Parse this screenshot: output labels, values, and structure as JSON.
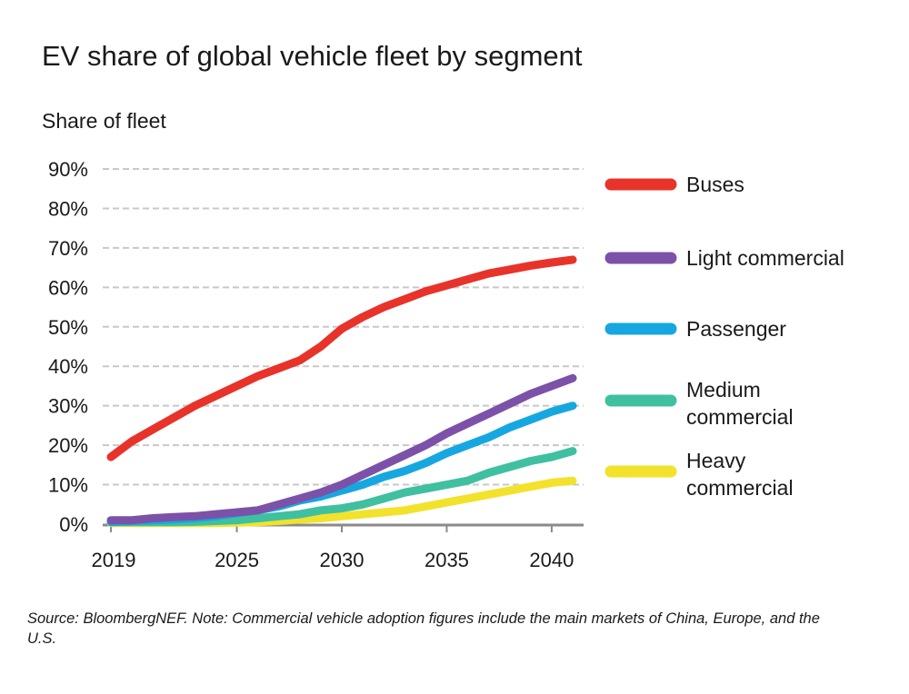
{
  "chart_data": {
    "type": "line",
    "title": "EV share of global vehicle fleet by segment",
    "ylabel": "Share of fleet",
    "xlabel": "",
    "y_ticks": [
      "0%",
      "10%",
      "20%",
      "30%",
      "40%",
      "50%",
      "60%",
      "70%",
      "80%",
      "90%"
    ],
    "ylim": [
      0,
      90
    ],
    "x_ticks": [
      "2019",
      "2025",
      "2030",
      "2035",
      "2040"
    ],
    "xlim": [
      2019,
      2041
    ],
    "grid": "horizontal dashed",
    "legend_position": "right",
    "x": [
      2019,
      2020,
      2021,
      2022,
      2023,
      2024,
      2025,
      2026,
      2027,
      2028,
      2029,
      2030,
      2031,
      2032,
      2033,
      2034,
      2035,
      2036,
      2037,
      2038,
      2039,
      2040,
      2041
    ],
    "series": [
      {
        "name": "Buses",
        "color": "#e8332a",
        "values": [
          17,
          21,
          24,
          27,
          30,
          32.5,
          35,
          37.5,
          39.5,
          41.5,
          45,
          49.5,
          52.5,
          55,
          57,
          59,
          60.5,
          62,
          63.5,
          64.5,
          65.5,
          66.3,
          67
        ]
      },
      {
        "name": "Light commercial",
        "color": "#7c52a8",
        "values": [
          1,
          1,
          1.5,
          1.8,
          2,
          2.5,
          3,
          3.5,
          5,
          6.5,
          8,
          10,
          12.5,
          15,
          17.5,
          20,
          23,
          25.5,
          28,
          30.5,
          33,
          35,
          37
        ]
      },
      {
        "name": "Passenger",
        "color": "#17a7e0",
        "values": [
          0.5,
          0.8,
          1,
          1.2,
          1.5,
          2,
          2.8,
          3.5,
          4.5,
          6,
          7,
          8.5,
          10,
          12,
          13.5,
          15.5,
          18,
          20,
          22,
          24.5,
          26.5,
          28.5,
          30
        ]
      },
      {
        "name": "Medium commercial",
        "color": "#3fc0a0",
        "values": [
          0.5,
          0.5,
          0.5,
          0.5,
          0.6,
          0.8,
          1,
          1.5,
          2,
          2.5,
          3.5,
          4,
          5,
          6.5,
          8,
          9,
          10,
          11,
          13,
          14.5,
          16,
          17,
          18.5
        ]
      },
      {
        "name": "Heavy commercial",
        "color": "#f2e22c",
        "values": [
          0.3,
          0.3,
          0.3,
          0.3,
          0.3,
          0.3,
          0.4,
          0.5,
          0.8,
          1.2,
          1.5,
          2,
          2.5,
          3,
          3.5,
          4.5,
          5.5,
          6.5,
          7.5,
          8.5,
          9.5,
          10.5,
          11
        ]
      }
    ],
    "legend": [
      {
        "lines": [
          "Buses"
        ],
        "color": "#e8332a"
      },
      {
        "lines": [
          "Light commercial"
        ],
        "color": "#7c52a8"
      },
      {
        "lines": [
          "Passenger"
        ],
        "color": "#17a7e0"
      },
      {
        "lines": [
          "Medium",
          "commercial"
        ],
        "color": "#3fc0a0"
      },
      {
        "lines": [
          "Heavy",
          "commercial"
        ],
        "color": "#f2e22c"
      }
    ]
  },
  "source_note": "Source: BloombergNEF. Note: Commercial vehicle adoption figures include the main markets of China, Europe, and the U.S."
}
